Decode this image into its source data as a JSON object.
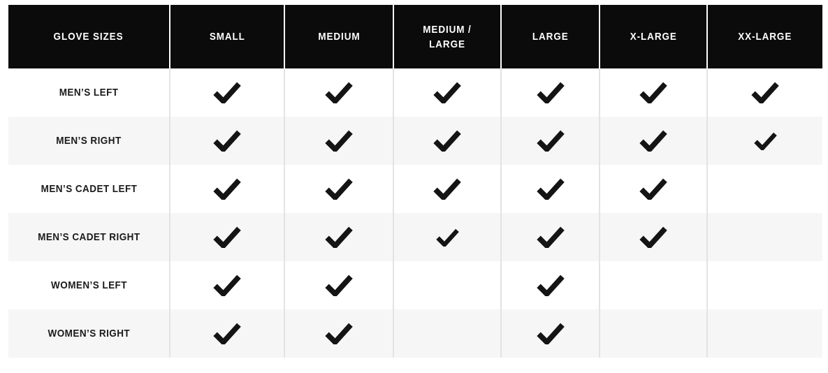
{
  "colors": {
    "header_bg": "#0b0b0b",
    "header_text": "#ffffff",
    "header_divider": "#fdfdfd",
    "row_bg": "#ffffff",
    "row_alt_bg": "#f6f6f6",
    "divider": "#e3e3e3",
    "text": "#1b1b1b",
    "check": "#141414"
  },
  "table": {
    "header": [
      "GLOVE SIZES",
      "SMALL",
      "MEDIUM",
      "MEDIUM / LARGE",
      "LARGE",
      "X-LARGE",
      "XX-LARGE"
    ],
    "check_icon": "checkmark-icon",
    "rows": [
      {
        "label": "MEN’S LEFT",
        "availability": [
          "check",
          "check",
          "check",
          "check",
          "check",
          "check"
        ]
      },
      {
        "label": "MEN’S RIGHT",
        "availability": [
          "check",
          "check",
          "check",
          "check",
          "check",
          "check-small"
        ]
      },
      {
        "label": "MEN’S CADET LEFT",
        "availability": [
          "check",
          "check",
          "check",
          "check",
          "check",
          ""
        ]
      },
      {
        "label": "MEN’S CADET RIGHT",
        "availability": [
          "check",
          "check",
          "check-small",
          "check",
          "check",
          ""
        ]
      },
      {
        "label": "WOMEN’S LEFT",
        "availability": [
          "check",
          "check",
          "",
          "check",
          "",
          ""
        ]
      },
      {
        "label": "WOMEN’S RIGHT",
        "availability": [
          "check",
          "check",
          "",
          "check",
          "",
          ""
        ]
      }
    ]
  }
}
